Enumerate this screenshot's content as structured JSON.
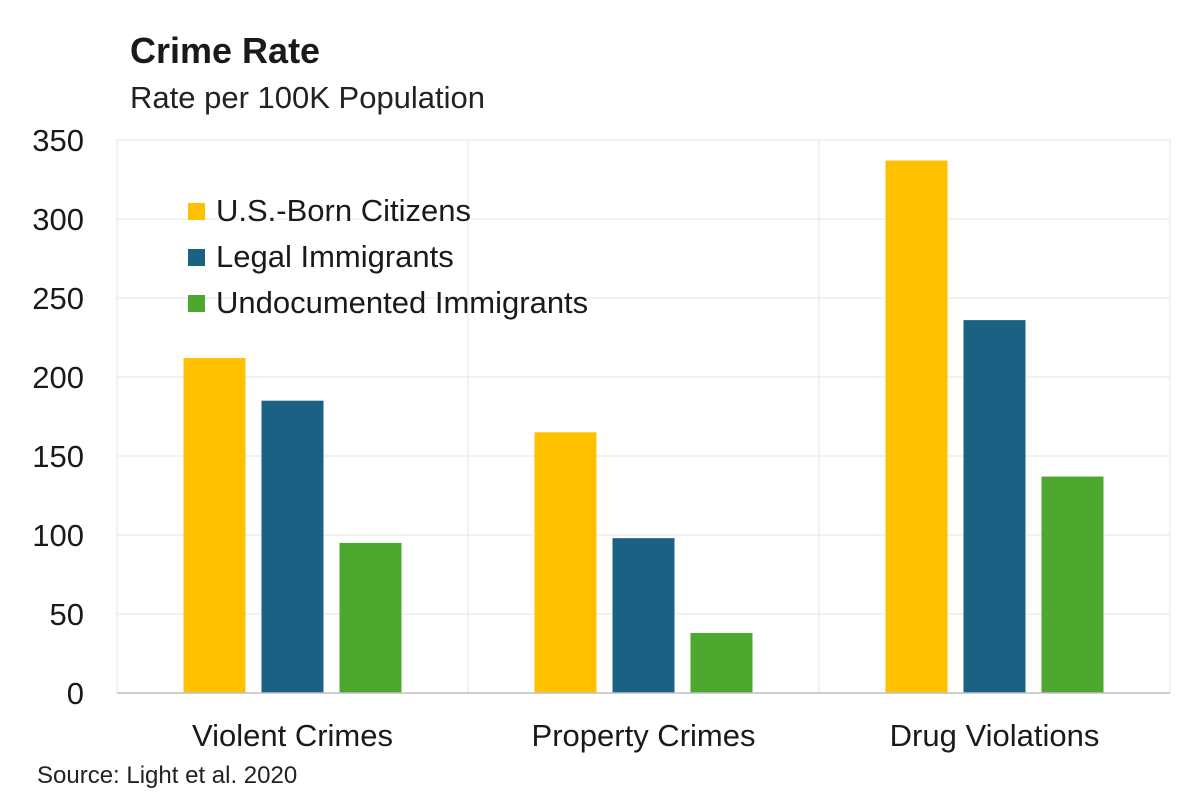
{
  "chart_data": {
    "type": "bar",
    "title": "Crime Rate",
    "subtitle": "Rate per 100K Population",
    "source": "Source: Light et al. 2020",
    "categories": [
      "Violent Crimes",
      "Property Crimes",
      "Drug Violations"
    ],
    "series": [
      {
        "name": "U.S.-Born Citizens",
        "color": "#FFC000",
        "values": [
          212,
          165,
          337
        ]
      },
      {
        "name": "Legal Immigrants",
        "color": "#1A6183",
        "values": [
          185,
          98,
          236
        ]
      },
      {
        "name": "Undocumented Immigrants",
        "color": "#4EA72E",
        "values": [
          95,
          38,
          137
        ]
      }
    ],
    "ylim": [
      0,
      350
    ],
    "yticks": [
      0,
      50,
      100,
      150,
      200,
      250,
      300,
      350
    ],
    "grid": true,
    "legend_position": "top-left"
  }
}
